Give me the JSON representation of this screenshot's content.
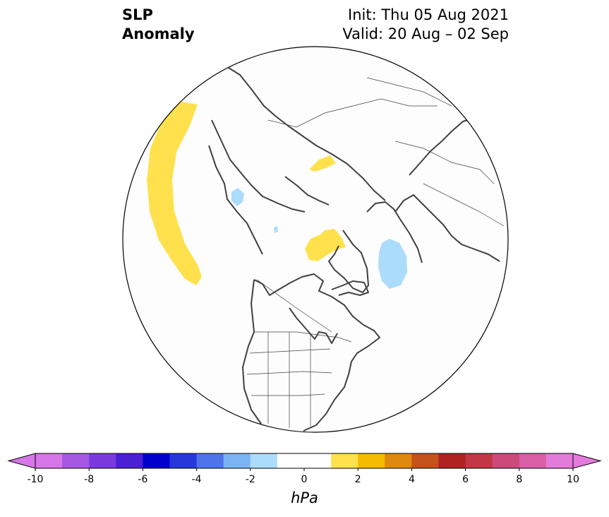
{
  "title": {
    "variable_line1": "SLP",
    "variable_line2": "Anomaly",
    "init_line": "Init: Thu 05 Aug 2021",
    "valid_line": "Valid: 20 Aug – 02 Sep"
  },
  "map": {
    "projection": "north-polar-stereographic",
    "region": "Northern Hemisphere (North America, Arctic, Europe, Asia)",
    "anomaly_areas": [
      {
        "sign": "positive",
        "bin_hPa": "1 to 2",
        "color": "#ffe14d",
        "location": "North Pacific"
      },
      {
        "sign": "positive",
        "bin_hPa": "1 to 2",
        "color": "#ffe14d",
        "location": "Siberia"
      },
      {
        "sign": "positive",
        "bin_hPa": "1 to 2",
        "color": "#ffe14d",
        "location": "Canadian Arctic / Greenland"
      },
      {
        "sign": "negative",
        "bin_hPa": "-1 to -2",
        "color": "#acdcfc",
        "location": "North Atlantic"
      },
      {
        "sign": "negative",
        "bin_hPa": "-1 to -2",
        "color": "#acdcfc",
        "location": "East Siberian coast"
      },
      {
        "sign": "negative",
        "bin_hPa": "-1 to -2",
        "color": "#acdcfc",
        "location": "Arctic Ocean (small)"
      }
    ]
  },
  "colorbar": {
    "units": "hPa",
    "min": -10,
    "max": 10,
    "extend": "both",
    "tick_labels": [
      "-10",
      "-8",
      "-6",
      "-4",
      "-2",
      "0",
      "2",
      "4",
      "6",
      "8",
      "10"
    ],
    "colors": [
      "#d776e8",
      "#a658e2",
      "#7a39dc",
      "#4b1fd4",
      "#0000cc",
      "#2738db",
      "#4e74e9",
      "#7ab4f5",
      "#acdcfc",
      "#ffffff",
      "#ffffff",
      "#ffe14d",
      "#f5bb00",
      "#de8a0e",
      "#c4521a",
      "#b02222",
      "#c23646",
      "#cc4a7a",
      "#d95fa7",
      "#e47bdb"
    ],
    "under_color": "#d776e8",
    "over_color": "#e47bdb"
  }
}
